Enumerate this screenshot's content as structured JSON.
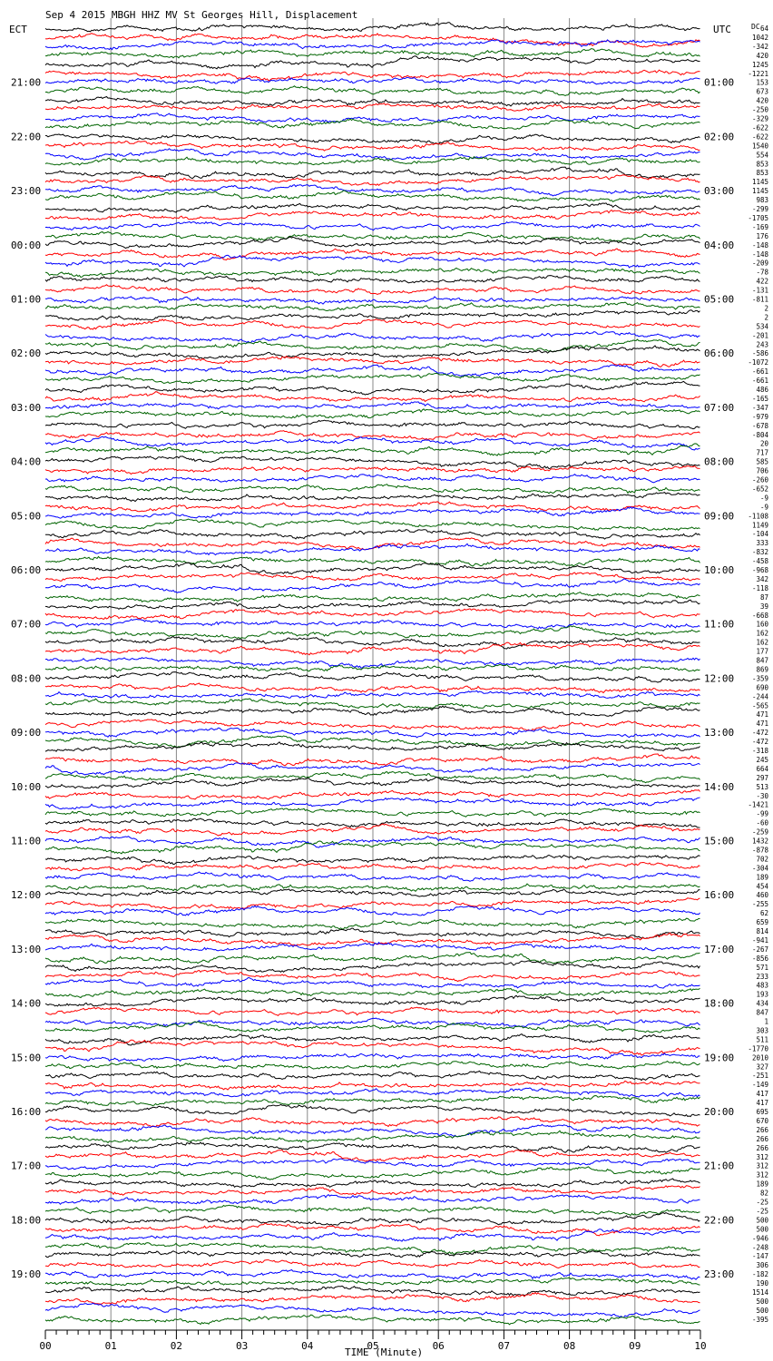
{
  "chart_data": {
    "type": "line",
    "title": "Sep  4 2015 MBGH HHZ MV St Georges Hill, Displacement",
    "left_axis_label": "ECT",
    "right_axis_label": "UTC",
    "top_right_label": "DC",
    "xlabel": "TIME (Minute)",
    "xlim": [
      0,
      10
    ],
    "x_ticks": [
      "00",
      "01",
      "02",
      "03",
      "04",
      "05",
      "06",
      "07",
      "08",
      "09",
      "10"
    ],
    "ect_hours": [
      "21:00",
      "22:00",
      "23:00",
      "00:00",
      "01:00",
      "02:00",
      "03:00",
      "04:00",
      "05:00",
      "06:00",
      "07:00",
      "08:00",
      "09:00",
      "10:00",
      "11:00",
      "12:00",
      "13:00",
      "14:00",
      "15:00",
      "16:00",
      "17:00",
      "18:00",
      "19:00"
    ],
    "utc_hours": [
      "01:00",
      "02:00",
      "03:00",
      "04:00",
      "05:00",
      "06:00",
      "07:00",
      "08:00",
      "09:00",
      "10:00",
      "11:00",
      "12:00",
      "13:00",
      "14:00",
      "15:00",
      "16:00",
      "17:00",
      "18:00",
      "19:00",
      "20:00",
      "21:00",
      "22:00",
      "23:00"
    ],
    "trace_minutes": 10,
    "traces_per_hour": 6,
    "trace_colors": [
      "#000000",
      "#ff0000",
      "#0000ff",
      "#006400"
    ],
    "dc_offsets": [
      "64",
      "1042",
      "-342",
      "420",
      "1245",
      "-1221",
      "153",
      "673",
      "420",
      "-250",
      "-329",
      "-622",
      "-622",
      "1540",
      "554",
      "853",
      "853",
      "1145",
      "1145",
      "983",
      "-299",
      "-1705",
      "-169",
      "176",
      "-148",
      "-148",
      "-209",
      "-78",
      "422",
      "-131",
      "-811",
      "2",
      "2",
      "534",
      "-201",
      "243",
      "-586",
      "-1072",
      "-661",
      "-661",
      "486",
      "-165",
      "-347",
      "-979",
      "-678",
      "-804",
      "20",
      "717",
      "585",
      "706",
      "-260",
      "-652",
      "-9",
      "-9",
      "-1108",
      "1149",
      "-104",
      "333",
      "-832",
      "-458",
      "-968",
      "342",
      "-118",
      "87",
      "39",
      "-668",
      "160",
      "162",
      "162",
      "177",
      "847",
      "869",
      "-359",
      "690",
      "-244",
      "-565",
      "471",
      "471",
      "-472",
      "-472",
      "-318",
      "245",
      "664",
      "297",
      "513",
      "-30",
      "-1421",
      "-99",
      "-60",
      "-259",
      "1432",
      "-878",
      "702",
      "-304",
      "189",
      "454",
      "460",
      "-255",
      "62",
      "659",
      "814",
      "-941",
      "-267",
      "-856",
      "571",
      "233",
      "483",
      "193",
      "434",
      "847",
      "1",
      "303",
      "511",
      "-1770",
      "2010",
      "327",
      "-251",
      "-149",
      "417",
      "417",
      "695",
      "670",
      "266",
      "266",
      "266",
      "312",
      "312",
      "312",
      "189",
      "82",
      "-25",
      "-25",
      "500",
      "500",
      "-946",
      "-248",
      "-147",
      "306",
      "-182",
      "190",
      "1514",
      "500",
      "500",
      "-395"
    ]
  }
}
